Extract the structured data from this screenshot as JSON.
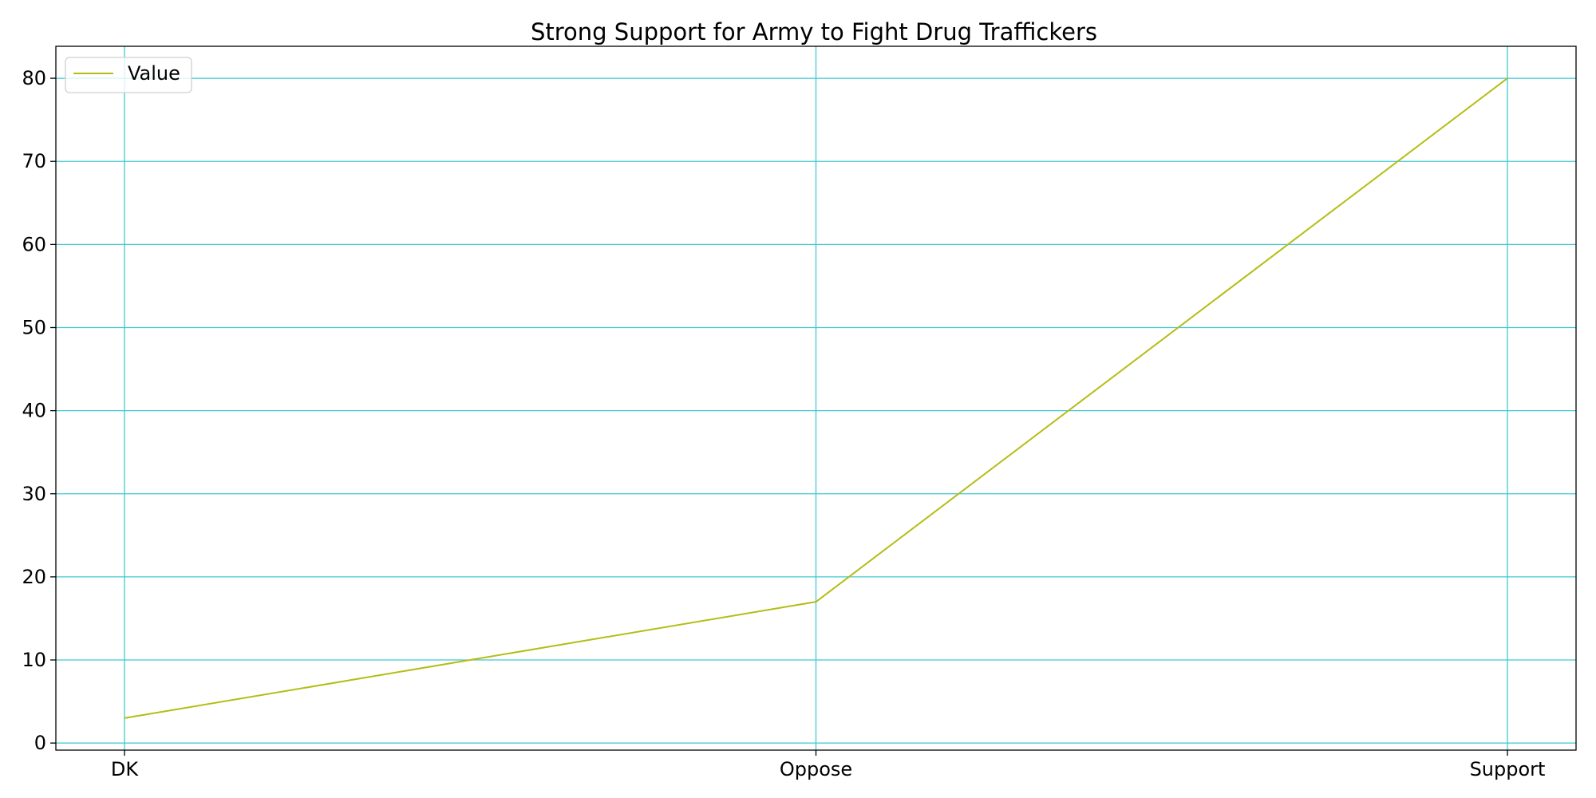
{
  "chart_data": {
    "type": "line",
    "title": "Strong Support for Army to Fight Drug Traffickers",
    "xlabel": "",
    "ylabel": "",
    "categories": [
      "DK",
      "Oppose",
      "Support"
    ],
    "series": [
      {
        "name": "Value",
        "values": [
          3,
          17,
          80
        ],
        "color": "#b5bd14"
      }
    ],
    "ylim": [
      -0.85,
      83.85
    ],
    "yticks": [
      0,
      10,
      20,
      30,
      40,
      50,
      60,
      70,
      80
    ],
    "grid": true,
    "grid_color": "#3fc8d2",
    "legend_position": "top-left"
  }
}
